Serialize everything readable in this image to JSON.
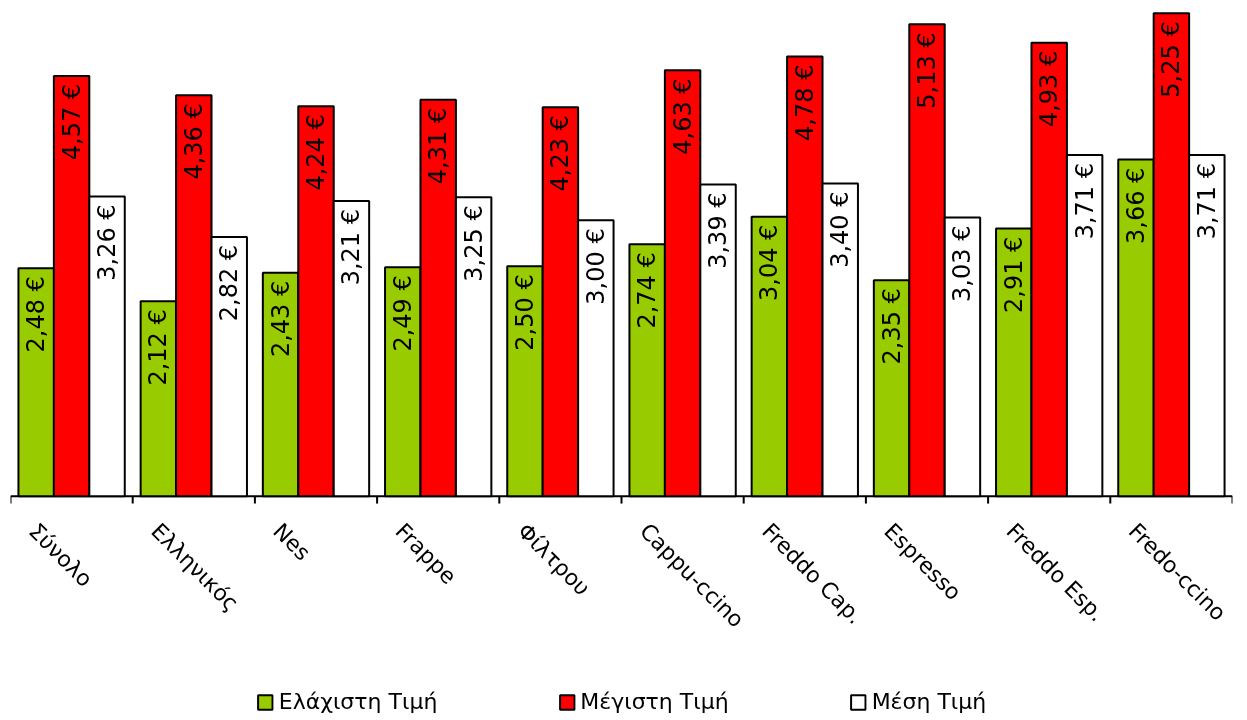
{
  "chart_data": {
    "type": "bar",
    "categories": [
      "Σύνολο",
      "Ελληνικός",
      "Nes",
      "Frappe",
      "Φίλτρου",
      "Cappu-ccino",
      "Freddo Cap.",
      "Espresso",
      "Freddo Esp.",
      "Fredo-ccino"
    ],
    "series": [
      {
        "name": "Ελάχιστη Τιμή",
        "color": "#99cc00",
        "values": [
          2.48,
          2.12,
          2.43,
          2.49,
          2.5,
          2.74,
          3.04,
          2.35,
          2.91,
          3.66
        ],
        "value_labels": [
          "2,48 €",
          "2,12 €",
          "2,43 €",
          "2,49 €",
          "2,50 €",
          "2,74 €",
          "3,04 €",
          "2,35 €",
          "2,91 €",
          "3,66 €"
        ]
      },
      {
        "name": "Μέγιστη Τιμή",
        "color": "#ff0000",
        "values": [
          4.57,
          4.36,
          4.24,
          4.31,
          4.23,
          4.63,
          4.78,
          5.13,
          4.93,
          5.25
        ],
        "value_labels": [
          "4,57 €",
          "4,36 €",
          "4,24 €",
          "4,31 €",
          "4,23 €",
          "4,63 €",
          "4,78 €",
          "5,13 €",
          "4,93 €",
          "5,25 €"
        ]
      },
      {
        "name": "Μέση Τιμή",
        "color": "#ffffff",
        "values": [
          3.26,
          2.82,
          3.21,
          3.25,
          3.0,
          3.39,
          3.4,
          3.03,
          3.71,
          3.71
        ],
        "value_labels": [
          "3,26 €",
          "2,82 €",
          "3,21 €",
          "3,25 €",
          "3,00 €",
          "3,39 €",
          "3,40 €",
          "3,03 €",
          "3,71 €",
          "3,71 €"
        ]
      }
    ],
    "legend": "bottom",
    "grid": false
  }
}
